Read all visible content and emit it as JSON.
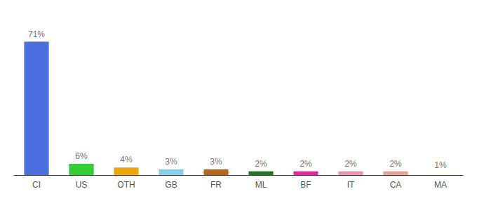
{
  "chart_data": {
    "type": "bar",
    "categories": [
      "CI",
      "US",
      "OTH",
      "GB",
      "FR",
      "ML",
      "BF",
      "IT",
      "CA",
      "MA"
    ],
    "values": [
      71,
      6,
      4,
      3,
      3,
      2,
      2,
      2,
      2,
      1
    ],
    "value_labels": [
      "71%",
      "6%",
      "4%",
      "3%",
      "3%",
      "2%",
      "2%",
      "2%",
      "2%",
      "1%"
    ],
    "colors": [
      "#4d6fe0",
      "#33cc33",
      "#f0a500",
      "#87ceeb",
      "#b5651d",
      "#1a7a1a",
      "#ff1aaa",
      "#f48fb1",
      "#e8a090",
      "#ffffcc"
    ],
    "ylim": [
      0,
      82
    ],
    "data_labels": true,
    "tick_labels": "x",
    "grid": false
  }
}
